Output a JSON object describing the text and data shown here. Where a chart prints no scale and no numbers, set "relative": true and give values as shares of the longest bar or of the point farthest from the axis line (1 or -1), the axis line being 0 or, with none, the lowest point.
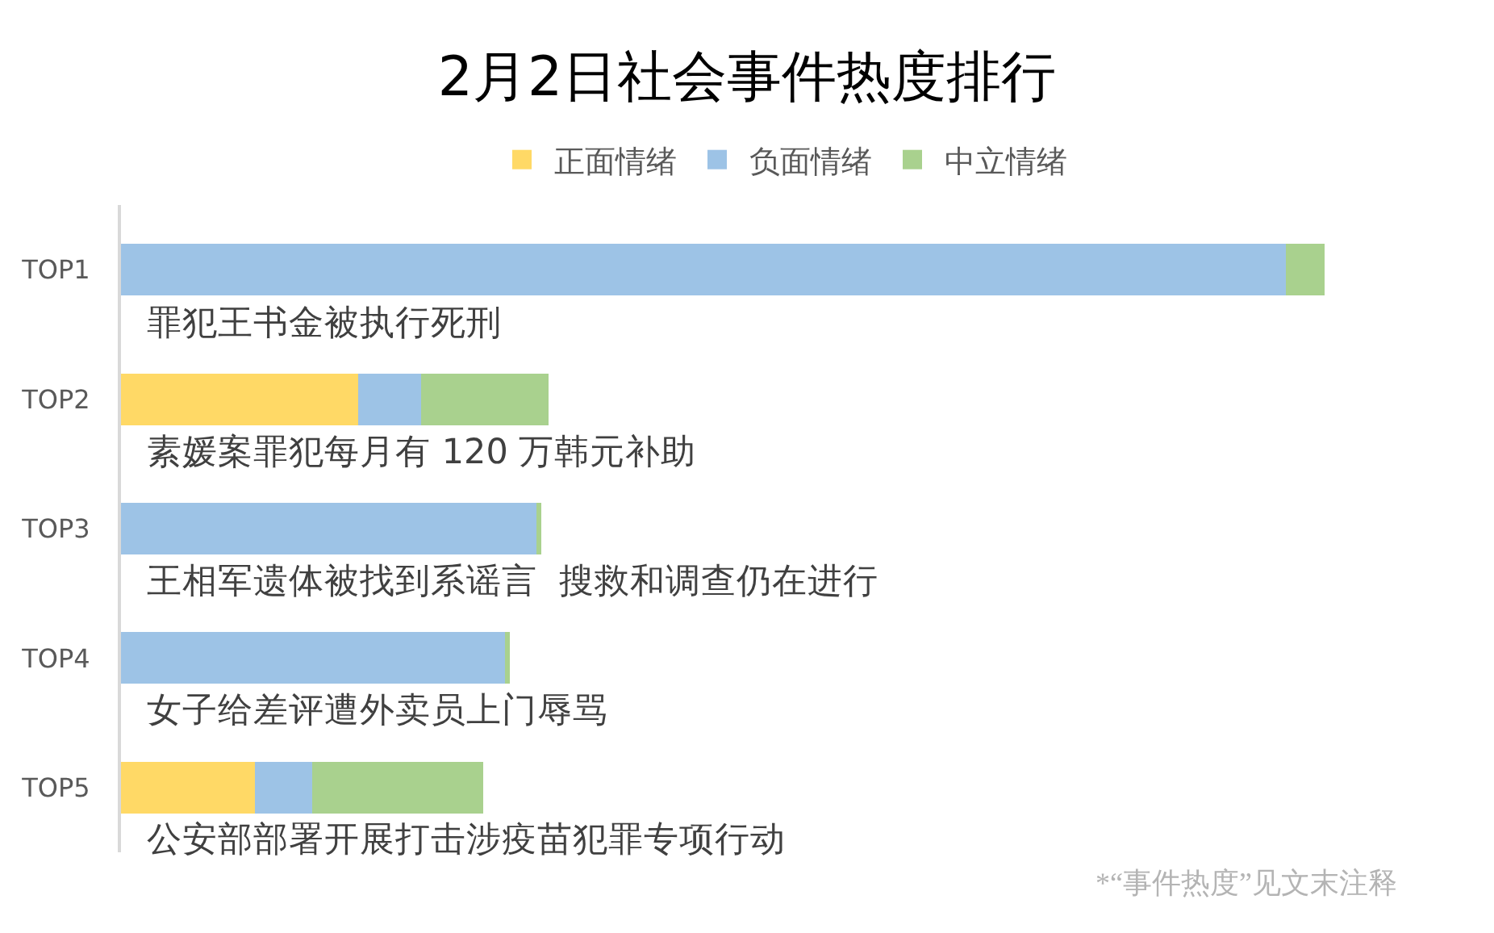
{
  "chart_data": {
    "type": "bar",
    "orientation": "horizontal",
    "stacked": true,
    "relative": true,
    "title": "2月2日社会事件热度排行",
    "categories": [
      "TOP1",
      "TOP2",
      "TOP3",
      "TOP4",
      "TOP5"
    ],
    "series": [
      {
        "name": "正面情绪",
        "color": "#ffd966",
        "values": [
          0,
          0.197,
          0,
          0,
          0.111
        ]
      },
      {
        "name": "负面情绪",
        "color": "#9dc3e6",
        "values": [
          0.968,
          0.052,
          0.345,
          0.319,
          0.048
        ]
      },
      {
        "name": "中立情绪",
        "color": "#a9d18e",
        "values": [
          0.032,
          0.106,
          0.004,
          0.004,
          0.142
        ]
      }
    ],
    "legend": "top",
    "annotations": [
      "罪犯王书金被执行死刑",
      "素媛案罪犯每月有 120 万韩元补助",
      "王相军遗体被找到系谣言  搜救和调查仍在进行",
      "女子给差评遭外卖员上门辱骂",
      "公安部部署开展打击涉疫苗犯罪专项行动",
      "*“事件热度”见文末注释"
    ]
  }
}
